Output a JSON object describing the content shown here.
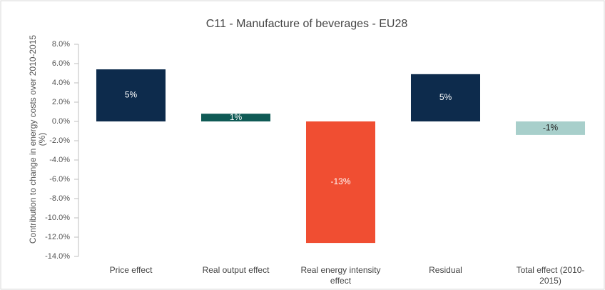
{
  "chart_data": {
    "type": "bar",
    "title": "C11 - Manufacture of beverages - EU28",
    "y_label": "Contribution to change in energy costs over 2010-2015 (%)",
    "categories": [
      "Price effect",
      "Real output effect",
      "Real energy intensity effect",
      "Residual",
      "Total effect (2010-2015)"
    ],
    "values": [
      5.4,
      0.8,
      -12.6,
      4.9,
      -1.4
    ],
    "value_labels": [
      "5%",
      "1%",
      "-13%",
      "5%",
      "-1%"
    ],
    "colors": [
      "#0d2b4c",
      "#0f5a55",
      "#f04e32",
      "#0d2b4c",
      "#a8cfcb"
    ],
    "ylim": [
      -14,
      8
    ],
    "yticks": [
      {
        "value": 8,
        "label": "8.0%"
      },
      {
        "value": 6,
        "label": "6.0%"
      },
      {
        "value": 4,
        "label": "4.0%"
      },
      {
        "value": 2,
        "label": "2.0%"
      },
      {
        "value": 0,
        "label": "0.0%"
      },
      {
        "value": -2,
        "label": "-2.0%"
      },
      {
        "value": -4,
        "label": "-4.0%"
      },
      {
        "value": -6,
        "label": "-6.0%"
      },
      {
        "value": -8,
        "label": "-8.0%"
      },
      {
        "value": -10,
        "label": "-10.0%"
      },
      {
        "value": -12,
        "label": "-12.0%"
      },
      {
        "value": -14,
        "label": "-14.0%"
      }
    ],
    "grid": false
  }
}
